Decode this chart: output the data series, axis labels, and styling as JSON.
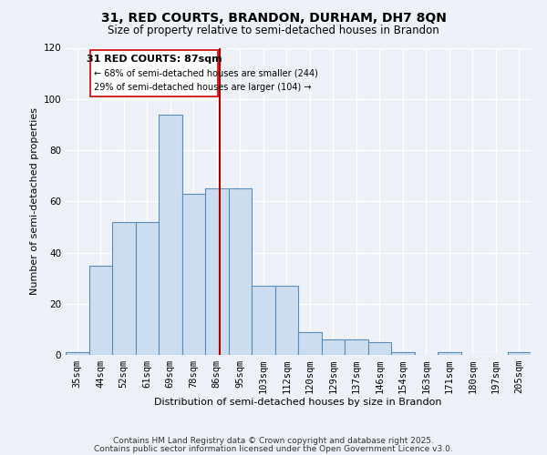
{
  "title": "31, RED COURTS, BRANDON, DURHAM, DH7 8QN",
  "subtitle": "Size of property relative to semi-detached houses in Brandon",
  "xlabel": "Distribution of semi-detached houses by size in Brandon",
  "ylabel": "Number of semi-detached properties",
  "bar_labels": [
    "35sqm",
    "44sqm",
    "52sqm",
    "61sqm",
    "69sqm",
    "78sqm",
    "86sqm",
    "95sqm",
    "103sqm",
    "112sqm",
    "120sqm",
    "129sqm",
    "137sqm",
    "146sqm",
    "154sqm",
    "163sqm",
    "171sqm",
    "180sqm",
    "197sqm",
    "205sqm"
  ],
  "bar_values": [
    1,
    35,
    52,
    52,
    94,
    63,
    65,
    65,
    27,
    27,
    9,
    6,
    6,
    5,
    1,
    0,
    1,
    0,
    0,
    1
  ],
  "bar_color": "#ccddf0",
  "bar_edge_color": "#5b8db8",
  "subject_label": "31 RED COURTS: 87sqm",
  "annotation_smaller": "← 68% of semi-detached houses are smaller (244)",
  "annotation_larger": "29% of semi-detached houses are larger (104) →",
  "vline_color": "#aa0000",
  "vline_x": 6.12,
  "ylim": [
    0,
    120
  ],
  "yticks": [
    0,
    20,
    40,
    60,
    80,
    100,
    120
  ],
  "background_color": "#eef2f8",
  "footer1": "Contains HM Land Registry data © Crown copyright and database right 2025.",
  "footer2": "Contains public sector information licensed under the Open Government Licence v3.0.",
  "annotation_box_color": "#ffffff",
  "annotation_box_edge": "#cc0000",
  "title_fontsize": 10,
  "subtitle_fontsize": 8.5,
  "axis_label_fontsize": 8,
  "tick_fontsize": 7.5,
  "footer_fontsize": 6.5
}
